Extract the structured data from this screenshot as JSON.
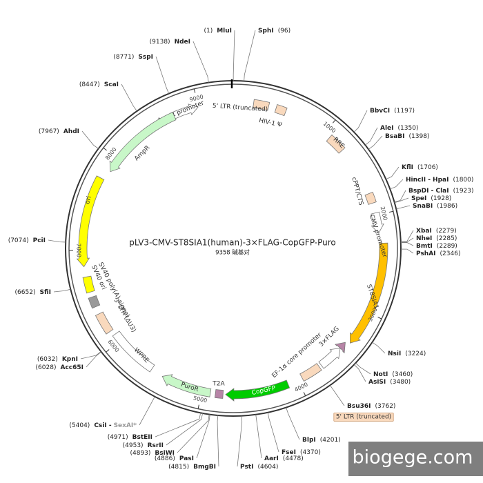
{
  "title": "pLV3-CMV-ST8SIA1(human)-3×FLAG-CopGFP-Puro",
  "sequence_length": {
    "value": 9358,
    "label": "9358 碱基对"
  },
  "scale_ticks": [
    1000,
    2000,
    3000,
    4000,
    5000,
    6000,
    7000,
    8000,
    9000
  ],
  "features": [
    {
      "label": "AmpR promoter",
      "color": "#ffffff"
    },
    {
      "label": "AmpR",
      "color": "#c8f7c8"
    },
    {
      "label": "ori",
      "color": "#ffff00"
    },
    {
      "label": "SV40 poly(A) signal",
      "color": "#ffff00"
    },
    {
      "label": "SV40 ori",
      "color": "#999999"
    },
    {
      "label": "3' LTR (ΔU3)",
      "color": "#f9d9bd"
    },
    {
      "label": "WPRE",
      "color": "#ffffff"
    },
    {
      "label": "PuroR",
      "color": "#c8f7c8"
    },
    {
      "label": "T2A",
      "color": "#b784a7"
    },
    {
      "label": "CopGFP",
      "color": "#00cc00"
    },
    {
      "label": "5' LTR (truncated)",
      "color": "#f9d9bd"
    },
    {
      "label": "EF-1α core promoter",
      "color": "#ffffff"
    },
    {
      "label": "3×FLAG",
      "color": "#b784a7"
    },
    {
      "label": "ST8SIA1",
      "color": "#ffc000"
    },
    {
      "label": "CMV promoter",
      "color": "#ffffff"
    },
    {
      "label": "cPPT/CTS",
      "color": "#f9d9bd"
    },
    {
      "label": "RRE",
      "color": "#f9d9bd"
    },
    {
      "label": "HIV-1 Ψ",
      "color": "#f9d9bd"
    },
    {
      "label": "5' LTR (truncated)",
      "color": "#f9d9bd"
    }
  ],
  "sites": [
    {
      "name": "MluI",
      "position": {
        "value": 1,
        "label": "(1)"
      }
    },
    {
      "name": "SphI",
      "position": {
        "value": 96,
        "label": "(96)"
      }
    },
    {
      "name": "BbvCI",
      "position": {
        "value": 1197,
        "label": "(1197)"
      }
    },
    {
      "name": "AleI",
      "position": {
        "value": 1350,
        "label": "(1350)"
      }
    },
    {
      "name": "BsaBI",
      "position": {
        "value": 1398,
        "label": "(1398)"
      }
    },
    {
      "name": "KflI",
      "position": {
        "value": 1706,
        "label": "(1706)"
      }
    },
    {
      "name": "HincII - HpaI",
      "position": {
        "value": 1800,
        "label": "(1800)"
      }
    },
    {
      "name": "BspDI - ClaI",
      "position": {
        "value": 1923,
        "label": "(1923)"
      }
    },
    {
      "name": "SpeI",
      "position": {
        "value": 1928,
        "label": "(1928)"
      }
    },
    {
      "name": "SnaBI",
      "position": {
        "value": 1986,
        "label": "(1986)"
      }
    },
    {
      "name": "XbaI",
      "position": {
        "value": 2279,
        "label": "(2279)"
      }
    },
    {
      "name": "NheI",
      "position": {
        "value": 2285,
        "label": "(2285)"
      }
    },
    {
      "name": "BmtI",
      "position": {
        "value": 2289,
        "label": "(2289)"
      }
    },
    {
      "name": "PshAI",
      "position": {
        "value": 2346,
        "label": "(2346)"
      }
    },
    {
      "name": "NsiI",
      "position": {
        "value": 3224,
        "label": "(3224)"
      }
    },
    {
      "name": "NotI",
      "position": {
        "value": 3460,
        "label": "(3460)"
      }
    },
    {
      "name": "AsiSI",
      "position": {
        "value": 3480,
        "label": "(3480)"
      }
    },
    {
      "name": "Bsu36I",
      "position": {
        "value": 3762,
        "label": "(3762)"
      }
    },
    {
      "name": "BlpI",
      "position": {
        "value": 4201,
        "label": "(4201)"
      }
    },
    {
      "name": "FseI",
      "position": {
        "value": 4370,
        "label": "(4370)"
      }
    },
    {
      "name": "AarI",
      "position": {
        "value": 4478,
        "label": "(4478)"
      }
    },
    {
      "name": "PstI",
      "position": {
        "value": 4604,
        "label": "(4604)"
      }
    },
    {
      "name": "BmgBI",
      "position": {
        "value": 4815,
        "label": "(4815)"
      }
    },
    {
      "name": "PasI",
      "position": {
        "value": 4886,
        "label": "(4886)"
      }
    },
    {
      "name": "BsiWI",
      "position": {
        "value": 4893,
        "label": "(4893)"
      }
    },
    {
      "name": "RsrII",
      "position": {
        "value": 4953,
        "label": "(4953)"
      }
    },
    {
      "name": "BstEII",
      "position": {
        "value": 4971,
        "label": "(4971)"
      }
    },
    {
      "name": "CsiI -",
      "alt_name": "SexAI*",
      "position": {
        "value": 5404,
        "label": "(5404)"
      }
    },
    {
      "name": "Acc65I",
      "position": {
        "value": 6028,
        "label": "(6028)"
      }
    },
    {
      "name": "KpnI",
      "position": {
        "value": 6032,
        "label": "(6032)"
      }
    },
    {
      "name": "SfiI",
      "position": {
        "value": 6652,
        "label": "(6652)"
      }
    },
    {
      "name": "PciI",
      "position": {
        "value": 7074,
        "label": "(7074)"
      }
    },
    {
      "name": "AhdI",
      "position": {
        "value": 7967,
        "label": "(7967)"
      }
    },
    {
      "name": "ScaI",
      "position": {
        "value": 8447,
        "label": "(8447)"
      }
    },
    {
      "name": "SspI",
      "position": {
        "value": 8771,
        "label": "(8771)"
      }
    },
    {
      "name": "NdeI",
      "position": {
        "value": 9138,
        "label": "(9138)"
      }
    }
  ],
  "watermark": "biogege.com"
}
